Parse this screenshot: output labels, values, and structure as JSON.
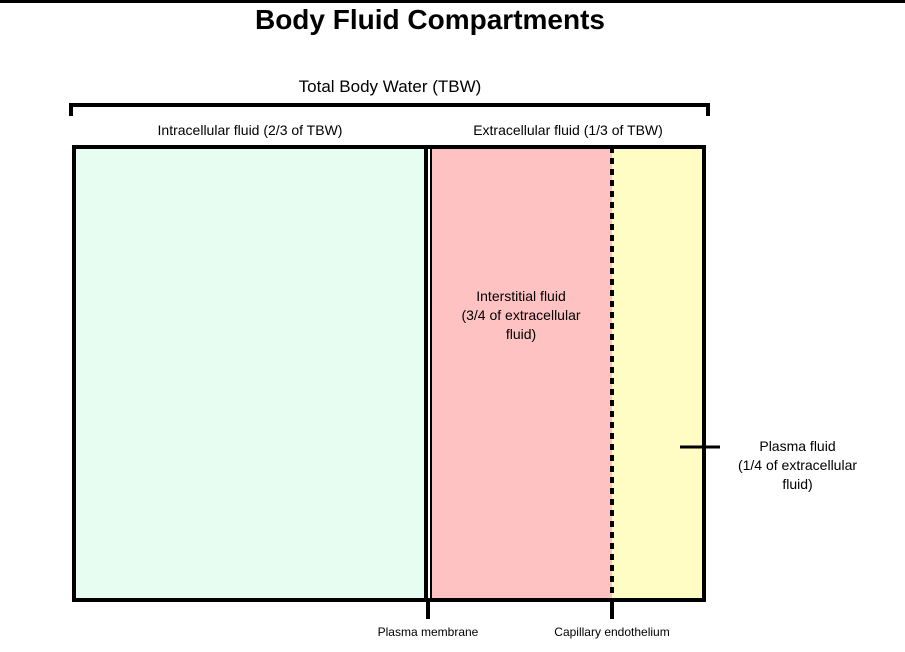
{
  "title": "Body Fluid Compartments",
  "total_label": "Total Body Water (TBW)",
  "intracellular_label": "Intracellular fluid (2/3 of TBW)",
  "extracellular_label": "Extracellular fluid (1/3 of TBW)",
  "interstitial": {
    "line1": "Interstitial fluid",
    "line2": "(3/4 of extracellular",
    "line3": "fluid)"
  },
  "plasma": {
    "line1": "Plasma fluid",
    "line2": "(1/4 of extracellular",
    "line3": "fluid)"
  },
  "plasma_membrane_label": "Plasma membrane",
  "capillary_label": "Capillary endothelium",
  "colors": {
    "intracellular": "#e8fdf2",
    "interstitial": "#ffc2c2",
    "plasma": "#fffcc4"
  }
}
